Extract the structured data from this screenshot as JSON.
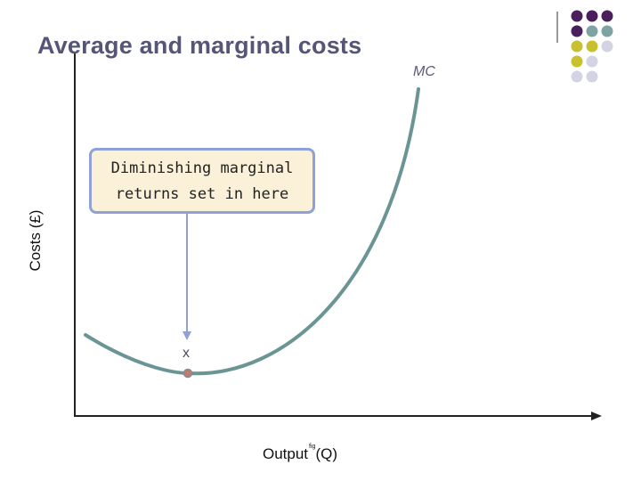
{
  "title": "Average and marginal costs",
  "axes": {
    "y_label": "Costs (£)",
    "x_label": "Output",
    "x_label_super": "fig",
    "x_label_unit": "(Q)"
  },
  "curve": {
    "label": "MC",
    "color": "#6b9595"
  },
  "callout": {
    "line1": "Diminishing marginal",
    "line2": "returns set in here",
    "marker": "x"
  },
  "colors": {
    "axis": "#222222",
    "arrow": "#8fa1d6",
    "point": "#c07a6e",
    "title": "#555577",
    "dot_purple": "#4a1f5c",
    "dot_teal": "#7fa3a3",
    "dot_olive": "#c9c030",
    "dot_lavender": "#d3d3e3"
  }
}
